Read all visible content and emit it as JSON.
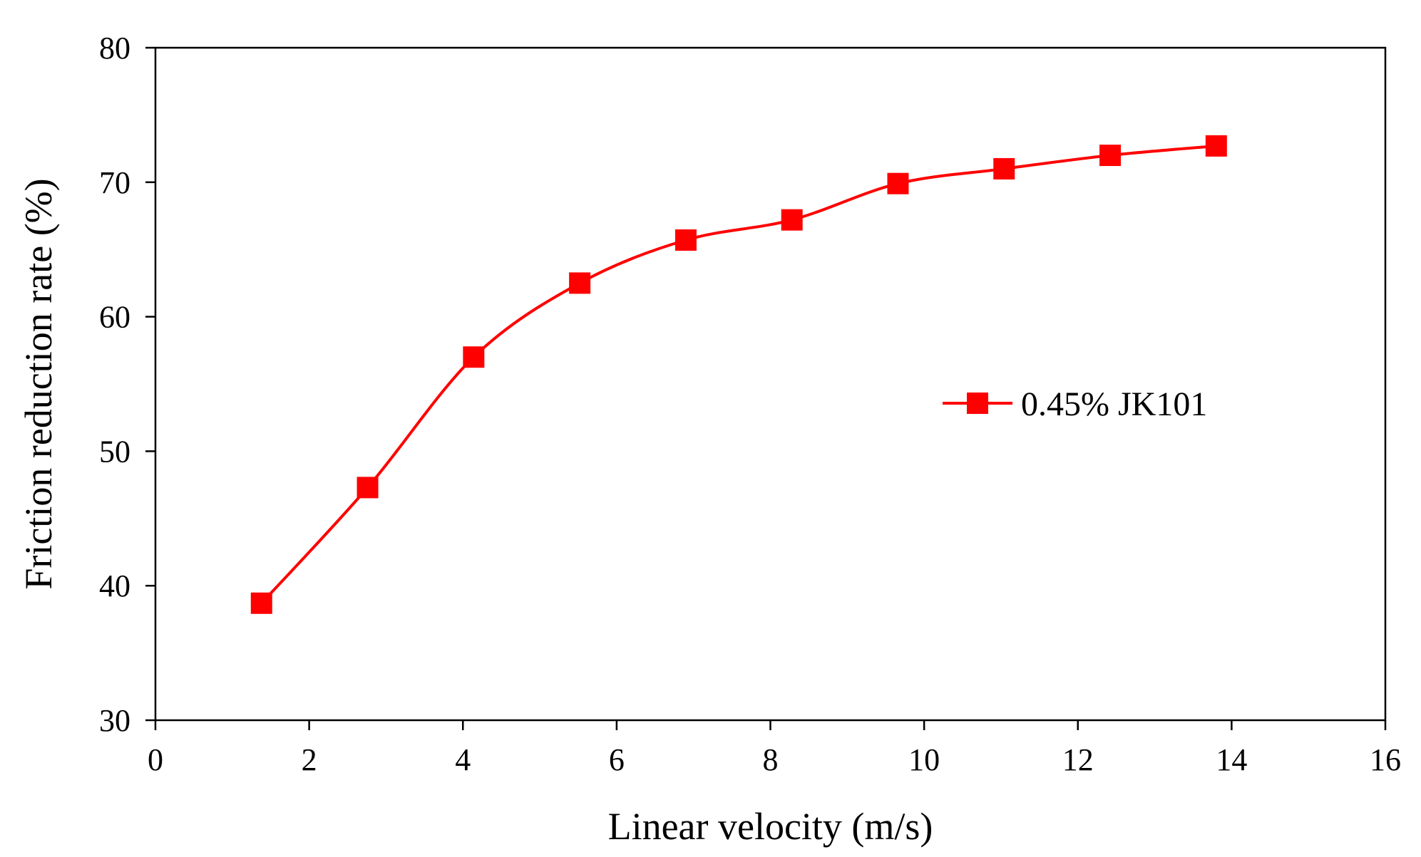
{
  "chart_data": {
    "type": "line",
    "title": "",
    "xlabel": "Linear velocity (m/s)",
    "ylabel": "Friction reduction rate (%)",
    "xlim": [
      0,
      16
    ],
    "ylim": [
      30,
      80
    ],
    "xticks": [
      0,
      2,
      4,
      6,
      8,
      10,
      12,
      14,
      16
    ],
    "yticks": [
      30,
      40,
      50,
      60,
      70,
      80
    ],
    "grid": false,
    "legend_position": "right-middle",
    "series": [
      {
        "name": "0.45% JK101",
        "color": "#ff0000",
        "marker": "square",
        "x": [
          1.38,
          2.76,
          4.14,
          5.52,
          6.9,
          8.28,
          9.66,
          11.04,
          12.42,
          13.8
        ],
        "y": [
          38.7,
          47.3,
          57.0,
          62.5,
          65.7,
          67.2,
          69.9,
          71.0,
          72.0,
          72.7
        ]
      }
    ]
  }
}
